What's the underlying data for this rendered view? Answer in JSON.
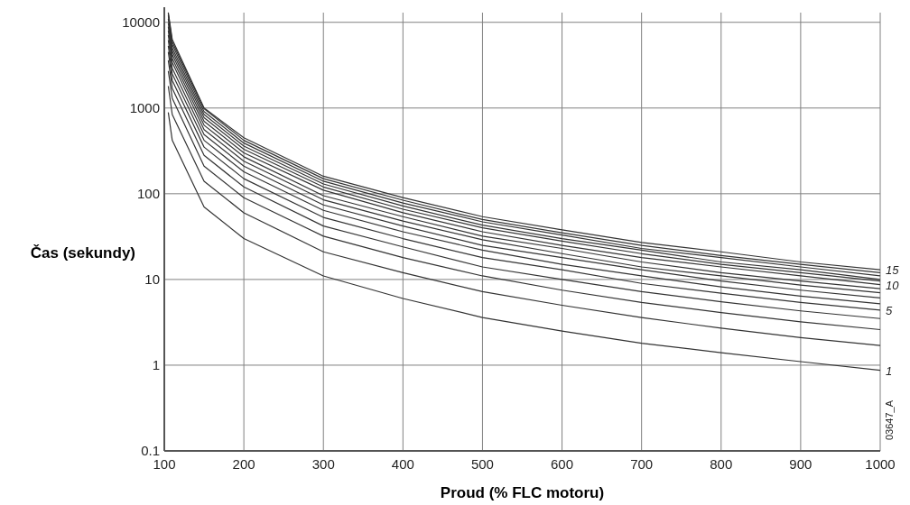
{
  "chart_data": {
    "type": "line",
    "xlabel": "Proud (% FLC motoru)",
    "ylabel": "Čas (sekundy)",
    "log": "y",
    "grid": true,
    "marker": "none",
    "line_style": "solid",
    "x": [
      105,
      110,
      150,
      200,
      300,
      400,
      500,
      600,
      700,
      800,
      900,
      1000
    ],
    "xlim": [
      100,
      1000
    ],
    "xticks": [
      100,
      200,
      300,
      400,
      500,
      600,
      700,
      800,
      900,
      1000
    ],
    "ylim": [
      0.1,
      15000
    ],
    "yticks": [
      0.1,
      1,
      10,
      100,
      1000,
      10000
    ],
    "series": [
      {
        "name": "1",
        "color": "#333333",
        "values": [
          890,
          420,
          70,
          30,
          11,
          6,
          3.6,
          2.5,
          1.8,
          1.4,
          1.1,
          0.87
        ]
      },
      {
        "color": "#333333",
        "values": [
          1800,
          840,
          140,
          60,
          21,
          12,
          7.2,
          5,
          3.6,
          2.7,
          2.1,
          1.7
        ]
      },
      {
        "color": "#333333",
        "values": [
          2700,
          1300,
          210,
          90,
          32,
          18,
          11,
          7.5,
          5.4,
          4.1,
          3.2,
          2.6
        ]
      },
      {
        "color": "#333333",
        "values": [
          3600,
          1700,
          280,
          120,
          42,
          24,
          14,
          10,
          7.2,
          5.5,
          4.3,
          3.5
        ]
      },
      {
        "name": "5",
        "color": "#333333",
        "values": [
          4500,
          2100,
          350,
          150,
          53,
          30,
          18,
          13,
          9,
          6.9,
          5.4,
          4.4
        ]
      },
      {
        "color": "#333333",
        "values": [
          5300,
          2500,
          420,
          180,
          64,
          36,
          22,
          15,
          11,
          8.2,
          6.4,
          5.2
        ]
      },
      {
        "color": "#333333",
        "values": [
          6200,
          2900,
          490,
          210,
          74,
          42,
          25,
          18,
          13,
          9.6,
          7.5,
          6.1
        ]
      },
      {
        "color": "#333333",
        "values": [
          7100,
          3400,
          560,
          240,
          85,
          48,
          29,
          20,
          14,
          11,
          8.6,
          7
        ]
      },
      {
        "color": "#333333",
        "values": [
          8000,
          3800,
          630,
          270,
          95,
          54,
          32,
          23,
          16,
          12,
          9.6,
          7.8
        ]
      },
      {
        "name": "10",
        "color": "#333333",
        "values": [
          8900,
          4200,
          700,
          300,
          110,
          60,
          36,
          25,
          18,
          14,
          11,
          8.7
        ]
      },
      {
        "color": "#333333",
        "values": [
          9800,
          4600,
          770,
          330,
          120,
          66,
          40,
          28,
          20,
          15,
          12,
          9.6
        ]
      },
      {
        "color": "#333333",
        "values": [
          11000,
          5000,
          840,
          360,
          130,
          72,
          43,
          30,
          22,
          16,
          13,
          10
        ]
      },
      {
        "color": "#333333",
        "values": [
          12000,
          5500,
          910,
          390,
          140,
          78,
          47,
          33,
          23,
          18,
          14,
          11
        ]
      },
      {
        "color": "#333333",
        "values": [
          12500,
          5900,
          980,
          420,
          150,
          84,
          50,
          35,
          25,
          19,
          15,
          12
        ]
      },
      {
        "name": "15",
        "color": "#333333",
        "values": [
          13000,
          6300,
          1000,
          450,
          160,
          90,
          54,
          38,
          27,
          21,
          16,
          13
        ]
      }
    ],
    "annotations": [
      "03647_A"
    ]
  }
}
